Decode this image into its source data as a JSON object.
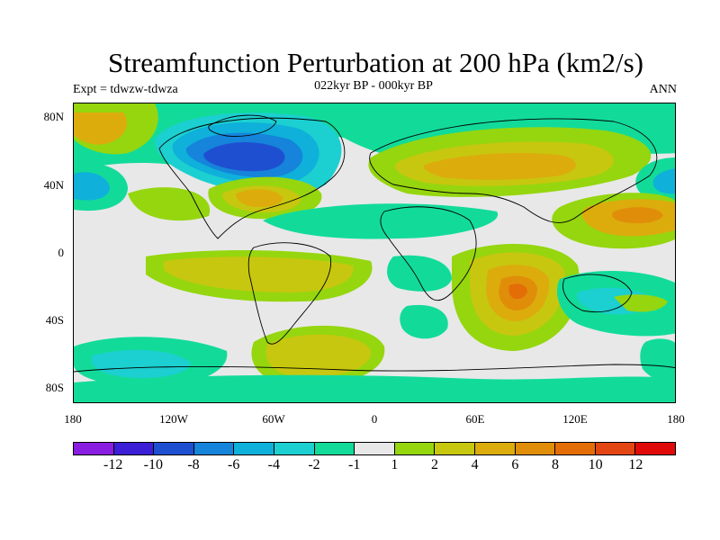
{
  "title": "Streamfunction Perturbation at 200 hPa (km2/s)",
  "subtitle": "022kyr BP - 000kyr BP",
  "left_label": "Expt = tdwzw-tdwza",
  "right_label": "ANN",
  "lat_labels": [
    "80N",
    "40N",
    "0",
    "40S",
    "80S"
  ],
  "lon_labels": [
    "180",
    "120W",
    "60W",
    "0",
    "60E",
    "120E",
    "180"
  ],
  "colorbar": {
    "colors": [
      "#8a1ee0",
      "#3b1fd6",
      "#1f4fd1",
      "#1584da",
      "#0fb0da",
      "#1ccfd0",
      "#12db9a",
      "#e8e8e8",
      "#95d60f",
      "#c7c70f",
      "#dcac0d",
      "#e08e0a",
      "#e36e08",
      "#e34612",
      "#e00a0a"
    ],
    "labels": [
      "-12",
      "-10",
      "-8",
      "-6",
      "-4",
      "-2",
      "-1",
      "1",
      "2",
      "4",
      "6",
      "8",
      "10",
      "12"
    ]
  }
}
